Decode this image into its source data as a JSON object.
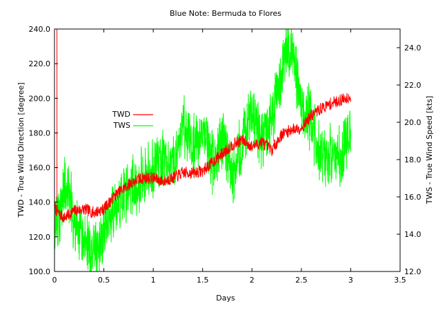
{
  "chart_data": {
    "type": "line",
    "title": "Blue Note: Bermuda to Flores",
    "xlabel": "Days",
    "ylabel_left": "TWD - True Wind Direction [degree]",
    "ylabel_right": "TWS - True Wind Speed [kts]",
    "xlim": [
      0,
      3.5
    ],
    "ylim_left": [
      100,
      240
    ],
    "ylim_right": [
      12,
      25
    ],
    "x_ticks": [
      "0",
      "0.5",
      "1",
      "1.5",
      "2",
      "2.5",
      "3",
      "3.5"
    ],
    "y_left_ticks": [
      "100.0",
      "120.0",
      "140.0",
      "160.0",
      "180.0",
      "200.0",
      "220.0",
      "240.0"
    ],
    "y_right_ticks": [
      "12.0",
      "14.0",
      "16.0",
      "18.0",
      "20.0",
      "22.0",
      "24.0"
    ],
    "grid": false,
    "legend_position": "upper-left, inside",
    "series": [
      {
        "name": "TWD",
        "axis": "left",
        "color": "#ff0000",
        "x": [
          0,
          0.05,
          0.1,
          0.15,
          0.2,
          0.3,
          0.4,
          0.5,
          0.6,
          0.7,
          0.8,
          0.9,
          1.0,
          1.1,
          1.2,
          1.3,
          1.4,
          1.5,
          1.6,
          1.7,
          1.8,
          1.9,
          2.0,
          2.1,
          2.2,
          2.3,
          2.4,
          2.5,
          2.6,
          2.7,
          2.8,
          2.9,
          3.0
        ],
        "values": [
          137,
          133,
          131,
          133,
          135,
          136,
          134,
          136,
          143,
          148,
          152,
          154,
          154,
          152,
          154,
          157,
          157,
          158,
          163,
          168,
          173,
          176,
          172,
          175,
          170,
          179,
          182,
          183,
          190,
          194,
          197,
          199,
          201
        ]
      },
      {
        "name": "TWS",
        "axis": "right",
        "color": "#00ff00",
        "x": [
          0,
          0.05,
          0.1,
          0.15,
          0.2,
          0.3,
          0.4,
          0.5,
          0.6,
          0.7,
          0.8,
          0.9,
          1.0,
          1.1,
          1.2,
          1.3,
          1.4,
          1.5,
          1.6,
          1.7,
          1.8,
          1.9,
          2.0,
          2.1,
          2.2,
          2.3,
          2.4,
          2.5,
          2.6,
          2.7,
          2.8,
          2.9,
          3.0
        ],
        "values": [
          14.0,
          15.0,
          16.5,
          16.0,
          14.5,
          13.5,
          13.0,
          14.0,
          15.0,
          16.0,
          16.5,
          17.0,
          17.5,
          18.0,
          17.5,
          20.0,
          18.5,
          19.5,
          18.0,
          19.0,
          17.0,
          19.0,
          20.5,
          19.0,
          20.0,
          23.0,
          24.0,
          21.0,
          20.0,
          18.0,
          18.5,
          18.0,
          20.0
        ],
        "noise_amplitude_kts": 1.4
      }
    ]
  }
}
